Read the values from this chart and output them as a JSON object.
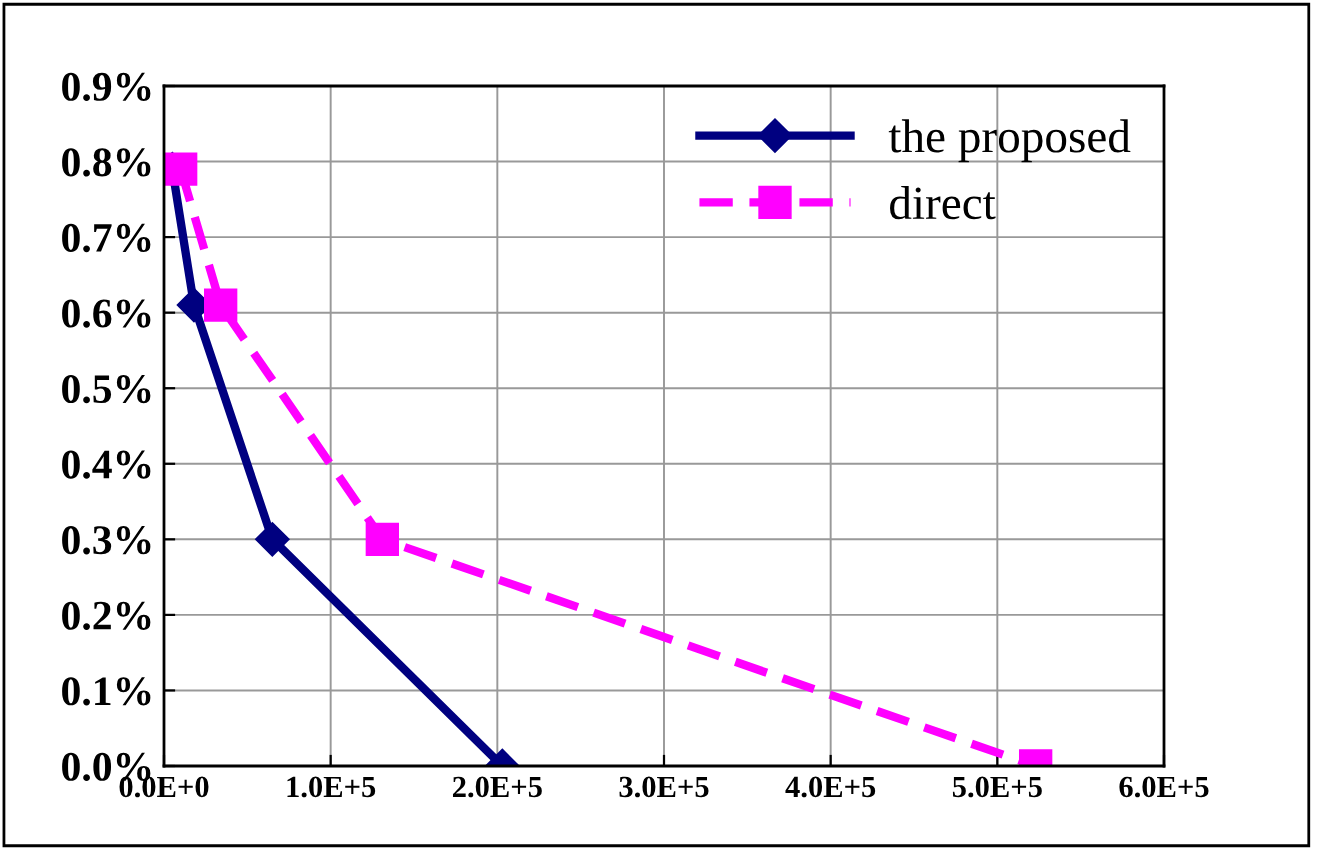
{
  "chart_data": {
    "type": "line",
    "series": [
      {
        "name": "the proposed",
        "color": "#000080",
        "marker": "diamond",
        "line_style": "solid",
        "x": [
          5000,
          18000,
          65000,
          203000
        ],
        "values": [
          0.79,
          0.61,
          0.3,
          0.0
        ]
      },
      {
        "name": "direct",
        "color": "#ff00ff",
        "marker": "square",
        "line_style": "dashed",
        "x": [
          10000,
          34000,
          131000,
          523000
        ],
        "values": [
          0.79,
          0.61,
          0.3,
          0.0
        ]
      }
    ],
    "xlim": [
      0,
      600000
    ],
    "xticks": [
      {
        "value": 0,
        "label": "0.0E+0"
      },
      {
        "value": 100000,
        "label": "1.0E+5"
      },
      {
        "value": 200000,
        "label": "2.0E+5"
      },
      {
        "value": 300000,
        "label": "3.0E+5"
      },
      {
        "value": 400000,
        "label": "4.0E+5"
      },
      {
        "value": 500000,
        "label": "5.0E+5"
      },
      {
        "value": 600000,
        "label": "6.0E+5"
      }
    ],
    "ylim": [
      0,
      0.9
    ],
    "yticks": [
      {
        "value": 0.0,
        "label": "0.0%"
      },
      {
        "value": 0.1,
        "label": "0.1%"
      },
      {
        "value": 0.2,
        "label": "0.2%"
      },
      {
        "value": 0.3,
        "label": "0.3%"
      },
      {
        "value": 0.4,
        "label": "0.4%"
      },
      {
        "value": 0.5,
        "label": "0.5%"
      },
      {
        "value": 0.6,
        "label": "0.6%"
      },
      {
        "value": 0.7,
        "label": "0.7%"
      },
      {
        "value": 0.8,
        "label": "0.8%"
      },
      {
        "value": 0.9,
        "label": "0.9%"
      }
    ],
    "grid": true,
    "legend": "top right"
  }
}
